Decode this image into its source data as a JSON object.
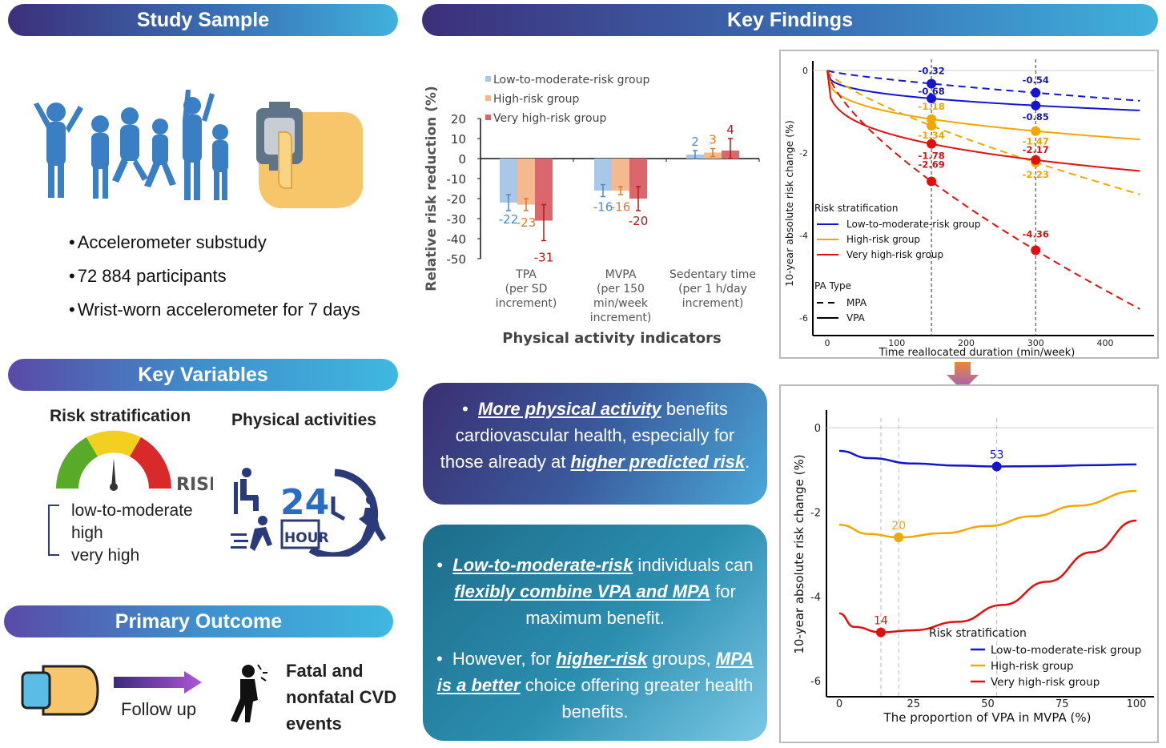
{
  "headers": {
    "study_sample": "Study Sample",
    "key_findings": "Key Findings",
    "key_variables": "Key Variables",
    "primary_outcome": "Primary Outcome"
  },
  "study_sample": {
    "bullets": [
      "Accelerometer substudy",
      "72 884 participants",
      "Wrist-worn accelerometer for 7 days"
    ]
  },
  "key_variables": {
    "risk_title": "Risk stratification",
    "risk_gauge_label": "RISK",
    "risk_levels": [
      "low-to-moderate",
      "high",
      "very high"
    ],
    "pa_title": "Physical activities",
    "clock_number": "24",
    "clock_label": "HOUR"
  },
  "primary_outcome": {
    "follow_up": "Follow up",
    "outcome_lines": [
      "Fatal and",
      "nonfatal CVD",
      "events"
    ]
  },
  "findings_text_1": {
    "p1": "More physical activity",
    "p2": " benefits cardiovascular health, especially for those already at ",
    "p3": "higher predicted risk",
    "p4": "."
  },
  "findings_text_2": {
    "a1": "Low-to-moderate-risk",
    "a2": " individuals can ",
    "a3": "flexibly combine VPA and MPA",
    "a4": " for maximum benefit.",
    "b1": "However, for ",
    "b2": "higher-risk",
    "b3": " groups, ",
    "b4": "MPA is a better",
    "b5": " choice offering greater health benefits."
  },
  "colors": {
    "low": "#1515d0",
    "high": "#f0a800",
    "veryhigh": "#e01010",
    "bar_low": "#a9c8e8",
    "bar_high": "#f4b98e",
    "bar_veryhigh": "#d9676c",
    "lab_low": "#4a8ac8",
    "lab_high": "#d97a2a",
    "lab_veryhigh": "#b01818"
  },
  "chart_data": [
    {
      "type": "bar",
      "title": "",
      "xlabel": "Physical activity indicators",
      "ylabel": "Relative risk reduction (%)",
      "ylim": [
        -50,
        20
      ],
      "yticks": [
        "20",
        "10",
        "0",
        "-10",
        "-20",
        "-30",
        "-40",
        "-50"
      ],
      "categories": [
        [
          "TPA",
          "(per SD",
          "increment)"
        ],
        [
          "MVPA",
          "(per 150",
          "min/week",
          "increment)"
        ],
        [
          "Sedentary time",
          "(per 1 h/day",
          "increment)"
        ]
      ],
      "legend": [
        "Low-to-moderate-risk group",
        "High-risk group",
        "Very high-risk group"
      ],
      "series": [
        {
          "name": "Low-to-moderate-risk group",
          "values": [
            -22,
            -16,
            2
          ],
          "ci": [
            [
              -26,
              -18
            ],
            [
              -19,
              -13
            ],
            [
              0,
              4
            ]
          ],
          "labels": [
            "-22",
            "-16",
            "2"
          ]
        },
        {
          "name": "High-risk group",
          "values": [
            -23,
            -16,
            3
          ],
          "ci": [
            [
              -26,
              -20
            ],
            [
              -18,
              -14
            ],
            [
              1,
              5
            ]
          ],
          "labels": [
            "-23",
            "-16",
            "3"
          ]
        },
        {
          "name": "Very high-risk group",
          "values": [
            -31,
            -20,
            4
          ],
          "ci": [
            [
              -41,
              -23
            ],
            [
              -26,
              -14
            ],
            [
              0,
              10
            ]
          ],
          "labels": [
            "-31",
            "-20",
            "4"
          ]
        }
      ]
    },
    {
      "type": "line",
      "xlabel": "Time reallocated duration (min/week)",
      "ylabel": "10-year absolute risk change (%)",
      "xlim": [
        0,
        450
      ],
      "ylim": [
        -6,
        0
      ],
      "xticks": [
        "0",
        "100",
        "200",
        "300",
        "400"
      ],
      "yticks": [
        "0",
        "-2",
        "-4",
        "-6"
      ],
      "reference_x": [
        150,
        300
      ],
      "legend_title_1": "Risk stratification",
      "legend_title_2": "PA Type",
      "legend": [
        "Low-to-moderate-risk group",
        "High-risk group",
        "Very high-risk group"
      ],
      "pa_types": [
        "MPA",
        "VPA"
      ],
      "series": [
        {
          "group": "Low-to-moderate-risk group",
          "pa": "MPA",
          "points": [
            [
              150,
              -0.32
            ],
            [
              300,
              -0.54
            ]
          ],
          "labels": [
            "-0.32",
            "-0.54"
          ]
        },
        {
          "group": "Low-to-moderate-risk group",
          "pa": "VPA",
          "points": [
            [
              150,
              -0.68
            ],
            [
              300,
              -0.85
            ]
          ],
          "labels": [
            "-0.68",
            "-0.85"
          ]
        },
        {
          "group": "High-risk group",
          "pa": "VPA",
          "points": [
            [
              150,
              -1.18
            ],
            [
              300,
              -1.47
            ]
          ],
          "labels": [
            "-1.18",
            "-1.47"
          ]
        },
        {
          "group": "High-risk group",
          "pa": "MPA",
          "points": [
            [
              150,
              -1.34
            ],
            [
              300,
              -2.23
            ]
          ],
          "labels": [
            "-1.34",
            "-2.23"
          ]
        },
        {
          "group": "Very high-risk group",
          "pa": "VPA",
          "points": [
            [
              150,
              -1.78
            ],
            [
              300,
              -2.17
            ]
          ],
          "labels": [
            "-1.78",
            "-2.17"
          ]
        },
        {
          "group": "Very high-risk group",
          "pa": "MPA",
          "points": [
            [
              150,
              -2.69
            ],
            [
              300,
              -4.36
            ]
          ],
          "labels": [
            "-2.69",
            "-4.36"
          ]
        }
      ]
    },
    {
      "type": "line",
      "xlabel": "The proportion of VPA in MVPA (%)",
      "ylabel": "10-year absolute risk change (%)",
      "xlim": [
        0,
        100
      ],
      "ylim": [
        -6,
        0
      ],
      "xticks": [
        "0",
        "25",
        "50",
        "75",
        "100"
      ],
      "yticks": [
        "0",
        "-2",
        "-4",
        "-6"
      ],
      "legend_title": "Risk stratification",
      "legend": [
        "Low-to-moderate-risk group",
        "High-risk group",
        "Very high-risk group"
      ],
      "series": [
        {
          "name": "Low-to-moderate-risk group",
          "x": [
            0,
            10,
            25,
            40,
            53,
            70,
            85,
            100
          ],
          "y": [
            -0.55,
            -0.72,
            -0.85,
            -0.9,
            -0.92,
            -0.91,
            -0.89,
            -0.87
          ],
          "optimum": [
            53,
            -0.92
          ],
          "optimum_label": "53"
        },
        {
          "name": "High-risk group",
          "x": [
            0,
            10,
            20,
            35,
            50,
            65,
            80,
            100
          ],
          "y": [
            -2.3,
            -2.52,
            -2.6,
            -2.5,
            -2.33,
            -2.1,
            -1.85,
            -1.5
          ],
          "optimum": [
            20,
            -2.6
          ],
          "optimum_label": "20"
        },
        {
          "name": "Very high-risk group",
          "x": [
            0,
            5,
            14,
            25,
            40,
            55,
            70,
            85,
            100
          ],
          "y": [
            -4.4,
            -4.72,
            -4.85,
            -4.8,
            -4.6,
            -4.2,
            -3.65,
            -2.95,
            -2.2
          ],
          "optimum": [
            14,
            -4.85
          ],
          "optimum_label": "14"
        }
      ],
      "reference_x": [
        14,
        20,
        53
      ]
    }
  ]
}
